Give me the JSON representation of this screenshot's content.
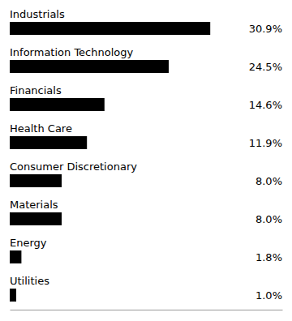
{
  "chart_data": {
    "type": "bar",
    "orientation": "horizontal",
    "categories": [
      "Industrials",
      "Information Technology",
      "Financials",
      "Health Care",
      "Consumer Discretionary",
      "Materials",
      "Energy",
      "Utilities"
    ],
    "values": [
      30.9,
      24.5,
      14.6,
      11.9,
      8.0,
      8.0,
      1.8,
      1.0
    ],
    "value_labels": [
      "30.9%",
      "24.5%",
      "14.6%",
      "11.9%",
      "8.0%",
      "8.0%",
      "1.8%",
      "1.0%"
    ],
    "data_labels": true,
    "color": "#000000",
    "xlim": [
      0,
      42
    ],
    "tick_labels": false,
    "grid": false
  }
}
